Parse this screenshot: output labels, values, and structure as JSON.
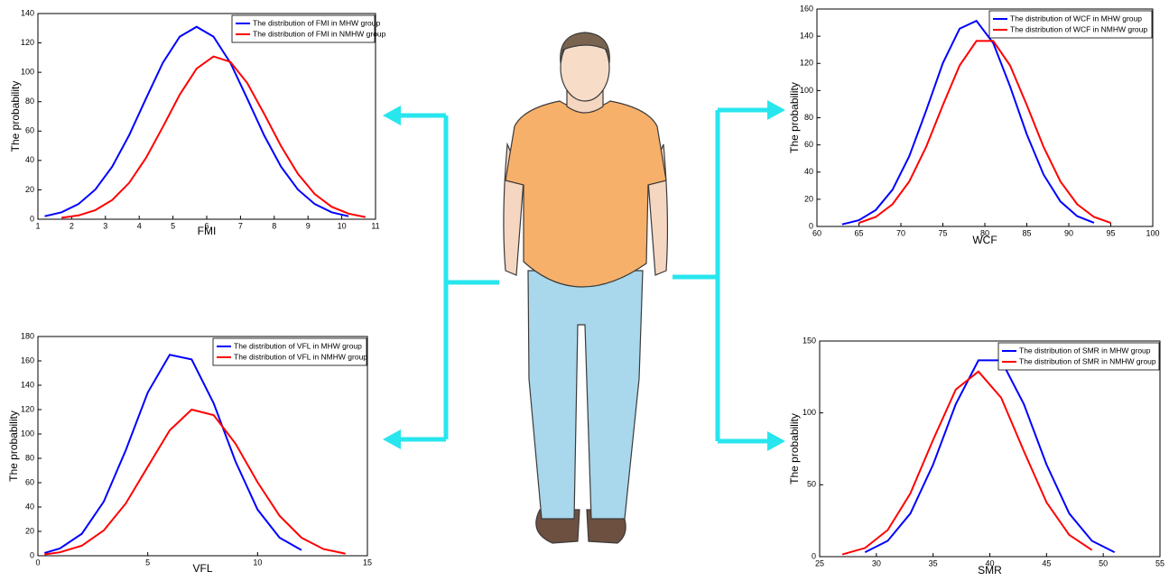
{
  "chart_data": [
    {
      "type": "line",
      "xlabel": "FMI",
      "ylabel": "The probability",
      "x": [
        1.2,
        1.7,
        2.2,
        2.7,
        3.2,
        3.7,
        4.2,
        4.7,
        5.2,
        5.7,
        6.2,
        6.7,
        7.2,
        7.7,
        8.2,
        8.7,
        9.2,
        9.7,
        10.2,
        10.7
      ],
      "series": [
        {
          "name": "The distribution of FMI in MHW group",
          "color": "#0000ff",
          "values": [
            2.0,
            4.7,
            10.3,
            20.2,
            35.8,
            57.1,
            82.1,
            106.5,
            124.3,
            131,
            124.3,
            106.5,
            82.1,
            57.1,
            35.8,
            20.2,
            10.3,
            4.7,
            2.0,
            null
          ]
        },
        {
          "name": "The distribution of FMI in NMHW group",
          "color": "#ff0000",
          "values": [
            null,
            1.0,
            2.6,
            6.2,
            13.1,
            24.7,
            41.7,
            62.8,
            84.8,
            102.5,
            110.8,
            107.1,
            92.7,
            71.8,
            49.8,
            30.9,
            17.1,
            8.5,
            3.8,
            1.5
          ]
        }
      ],
      "xlim": [
        1,
        11
      ],
      "ylim": [
        0,
        140
      ],
      "xticks": [
        1,
        2,
        3,
        4,
        5,
        6,
        7,
        8,
        9,
        10,
        11
      ],
      "yticks": [
        0,
        20,
        40,
        60,
        80,
        100,
        120,
        140
      ],
      "legend": "upper right"
    },
    {
      "type": "line",
      "xlabel": "VFL",
      "ylabel": "The probability",
      "x": [
        0.3,
        1,
        2,
        3,
        4,
        5,
        6,
        7,
        8,
        9,
        10,
        11,
        12,
        13,
        14
      ],
      "series": [
        {
          "name": "The distribution of VFL in MHW group",
          "color": "#0000ff",
          "values": [
            2.3,
            5.9,
            18.1,
            44.5,
            86.6,
            134.1,
            165.0,
            161.2,
            125.2,
            77.2,
            37.9,
            14.8,
            4.6,
            null,
            null
          ]
        },
        {
          "name": "The distribution of VFL in NMHW group",
          "color": "#ff0000",
          "values": [
            1.1,
            2.8,
            8.3,
            20.8,
            42.9,
            73.1,
            103.0,
            120.0,
            115.5,
            91.9,
            60.4,
            32.8,
            14.8,
            5.5,
            1.7
          ]
        }
      ],
      "xlim": [
        0,
        15
      ],
      "ylim": [
        0,
        180
      ],
      "xticks": [
        0,
        5,
        10,
        15
      ],
      "yticks": [
        0,
        20,
        40,
        60,
        80,
        100,
        120,
        140,
        160,
        180
      ],
      "legend": "upper right"
    },
    {
      "type": "line",
      "xlabel": "WCF",
      "ylabel": "The probability",
      "x": [
        63,
        65,
        67,
        69,
        71,
        73,
        75,
        77,
        79,
        81,
        83,
        85,
        87,
        89,
        91,
        93,
        95
      ],
      "series": [
        {
          "name": "The distribution of WCF in MHW group",
          "color": "#0000ff",
          "values": [
            1.5,
            4.6,
            12.1,
            27.0,
            51.7,
            85.1,
            120.2,
            145.6,
            151.3,
            134.9,
            103.1,
            67.7,
            38.1,
            18.4,
            7.6,
            2.7,
            null
          ]
        },
        {
          "name": "The distribution of WCF in NMHW group",
          "color": "#ff0000",
          "values": [
            null,
            2.6,
            7.0,
            16.3,
            33.1,
            58.4,
            89.3,
            118.5,
            136.5,
            136.5,
            118.5,
            89.3,
            58.4,
            33.1,
            16.3,
            7.0,
            2.6
          ]
        }
      ],
      "xlim": [
        60,
        100
      ],
      "ylim": [
        0,
        160
      ],
      "xticks": [
        60,
        65,
        70,
        75,
        80,
        85,
        90,
        95,
        100
      ],
      "yticks": [
        0,
        20,
        40,
        60,
        80,
        100,
        120,
        140,
        160
      ],
      "legend": "upper right"
    },
    {
      "type": "line",
      "xlabel": "SMR",
      "ylabel": "The probability",
      "x": [
        27,
        29,
        31,
        33,
        35,
        37,
        39,
        41,
        43,
        45,
        47,
        49,
        51
      ],
      "series": [
        {
          "name": "The distribution of SMR in MHW group",
          "color": "#0000ff",
          "values": [
            null,
            3.1,
            11.0,
            30.0,
            64.1,
            106.1,
            136.6,
            136.6,
            106.1,
            64.1,
            30.0,
            11.0,
            3.1
          ]
        },
        {
          "name": "The distribution of SMR in NMHW group",
          "color": "#ff0000",
          "values": [
            1.5,
            6.0,
            18.5,
            44.0,
            81.3,
            116.3,
            128.8,
            110.5,
            73.4,
            37.8,
            15.1,
            4.6,
            null
          ]
        }
      ],
      "xlim": [
        25,
        55
      ],
      "ylim": [
        0,
        150
      ],
      "xticks": [
        25,
        30,
        35,
        40,
        45,
        50,
        55
      ],
      "yticks": [
        0,
        50,
        100,
        150
      ],
      "legend": "upper right"
    }
  ]
}
